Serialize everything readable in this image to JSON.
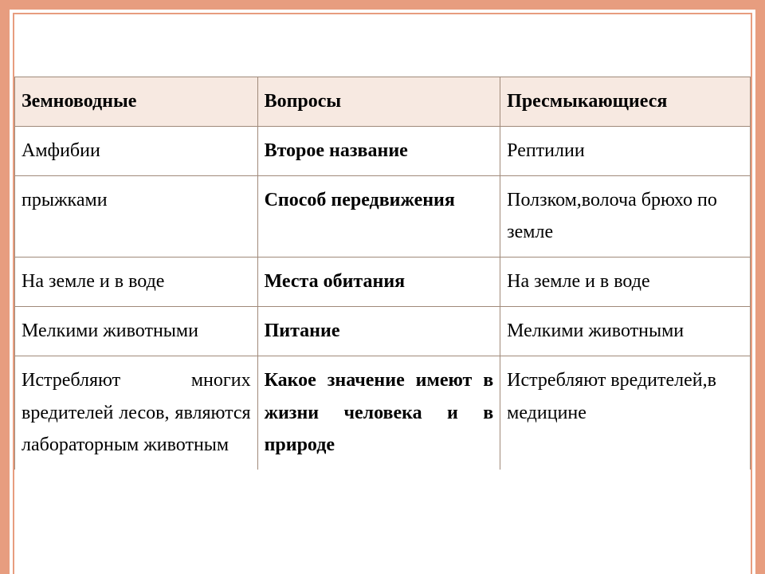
{
  "table": {
    "columns": [
      "left",
      "mid",
      "right"
    ],
    "border_color": "#a08a7a",
    "frame_color": "#e79d7f",
    "header_bg": "#f7e9e1",
    "background": "#ffffff",
    "font_family": "Times New Roman",
    "font_size_pt": 18,
    "header": {
      "left": "Земноводные",
      "mid": "Вопросы",
      "right": "Пресмыкающиеся"
    },
    "rows": [
      {
        "left": "Амфибии",
        "mid": "Второе название",
        "right": "Рептилии"
      },
      {
        "left": "прыжками",
        "mid": "Способ передвижения",
        "right": "Ползком,волоча брюхо по земле"
      },
      {
        "left": "На земле и в воде",
        "mid": "Места обитания",
        "right": "На земле и в воде"
      },
      {
        "left": "Мелкими животными",
        "mid": "Питание",
        "right": "Мелкими животными"
      },
      {
        "left": "Истребляют многих вредителей лесов, являются лабораторным животным",
        "mid": "Какое значение имеют в жизни человека и в природе",
        "right": "Истребляют вредителей,в медицине"
      }
    ]
  }
}
